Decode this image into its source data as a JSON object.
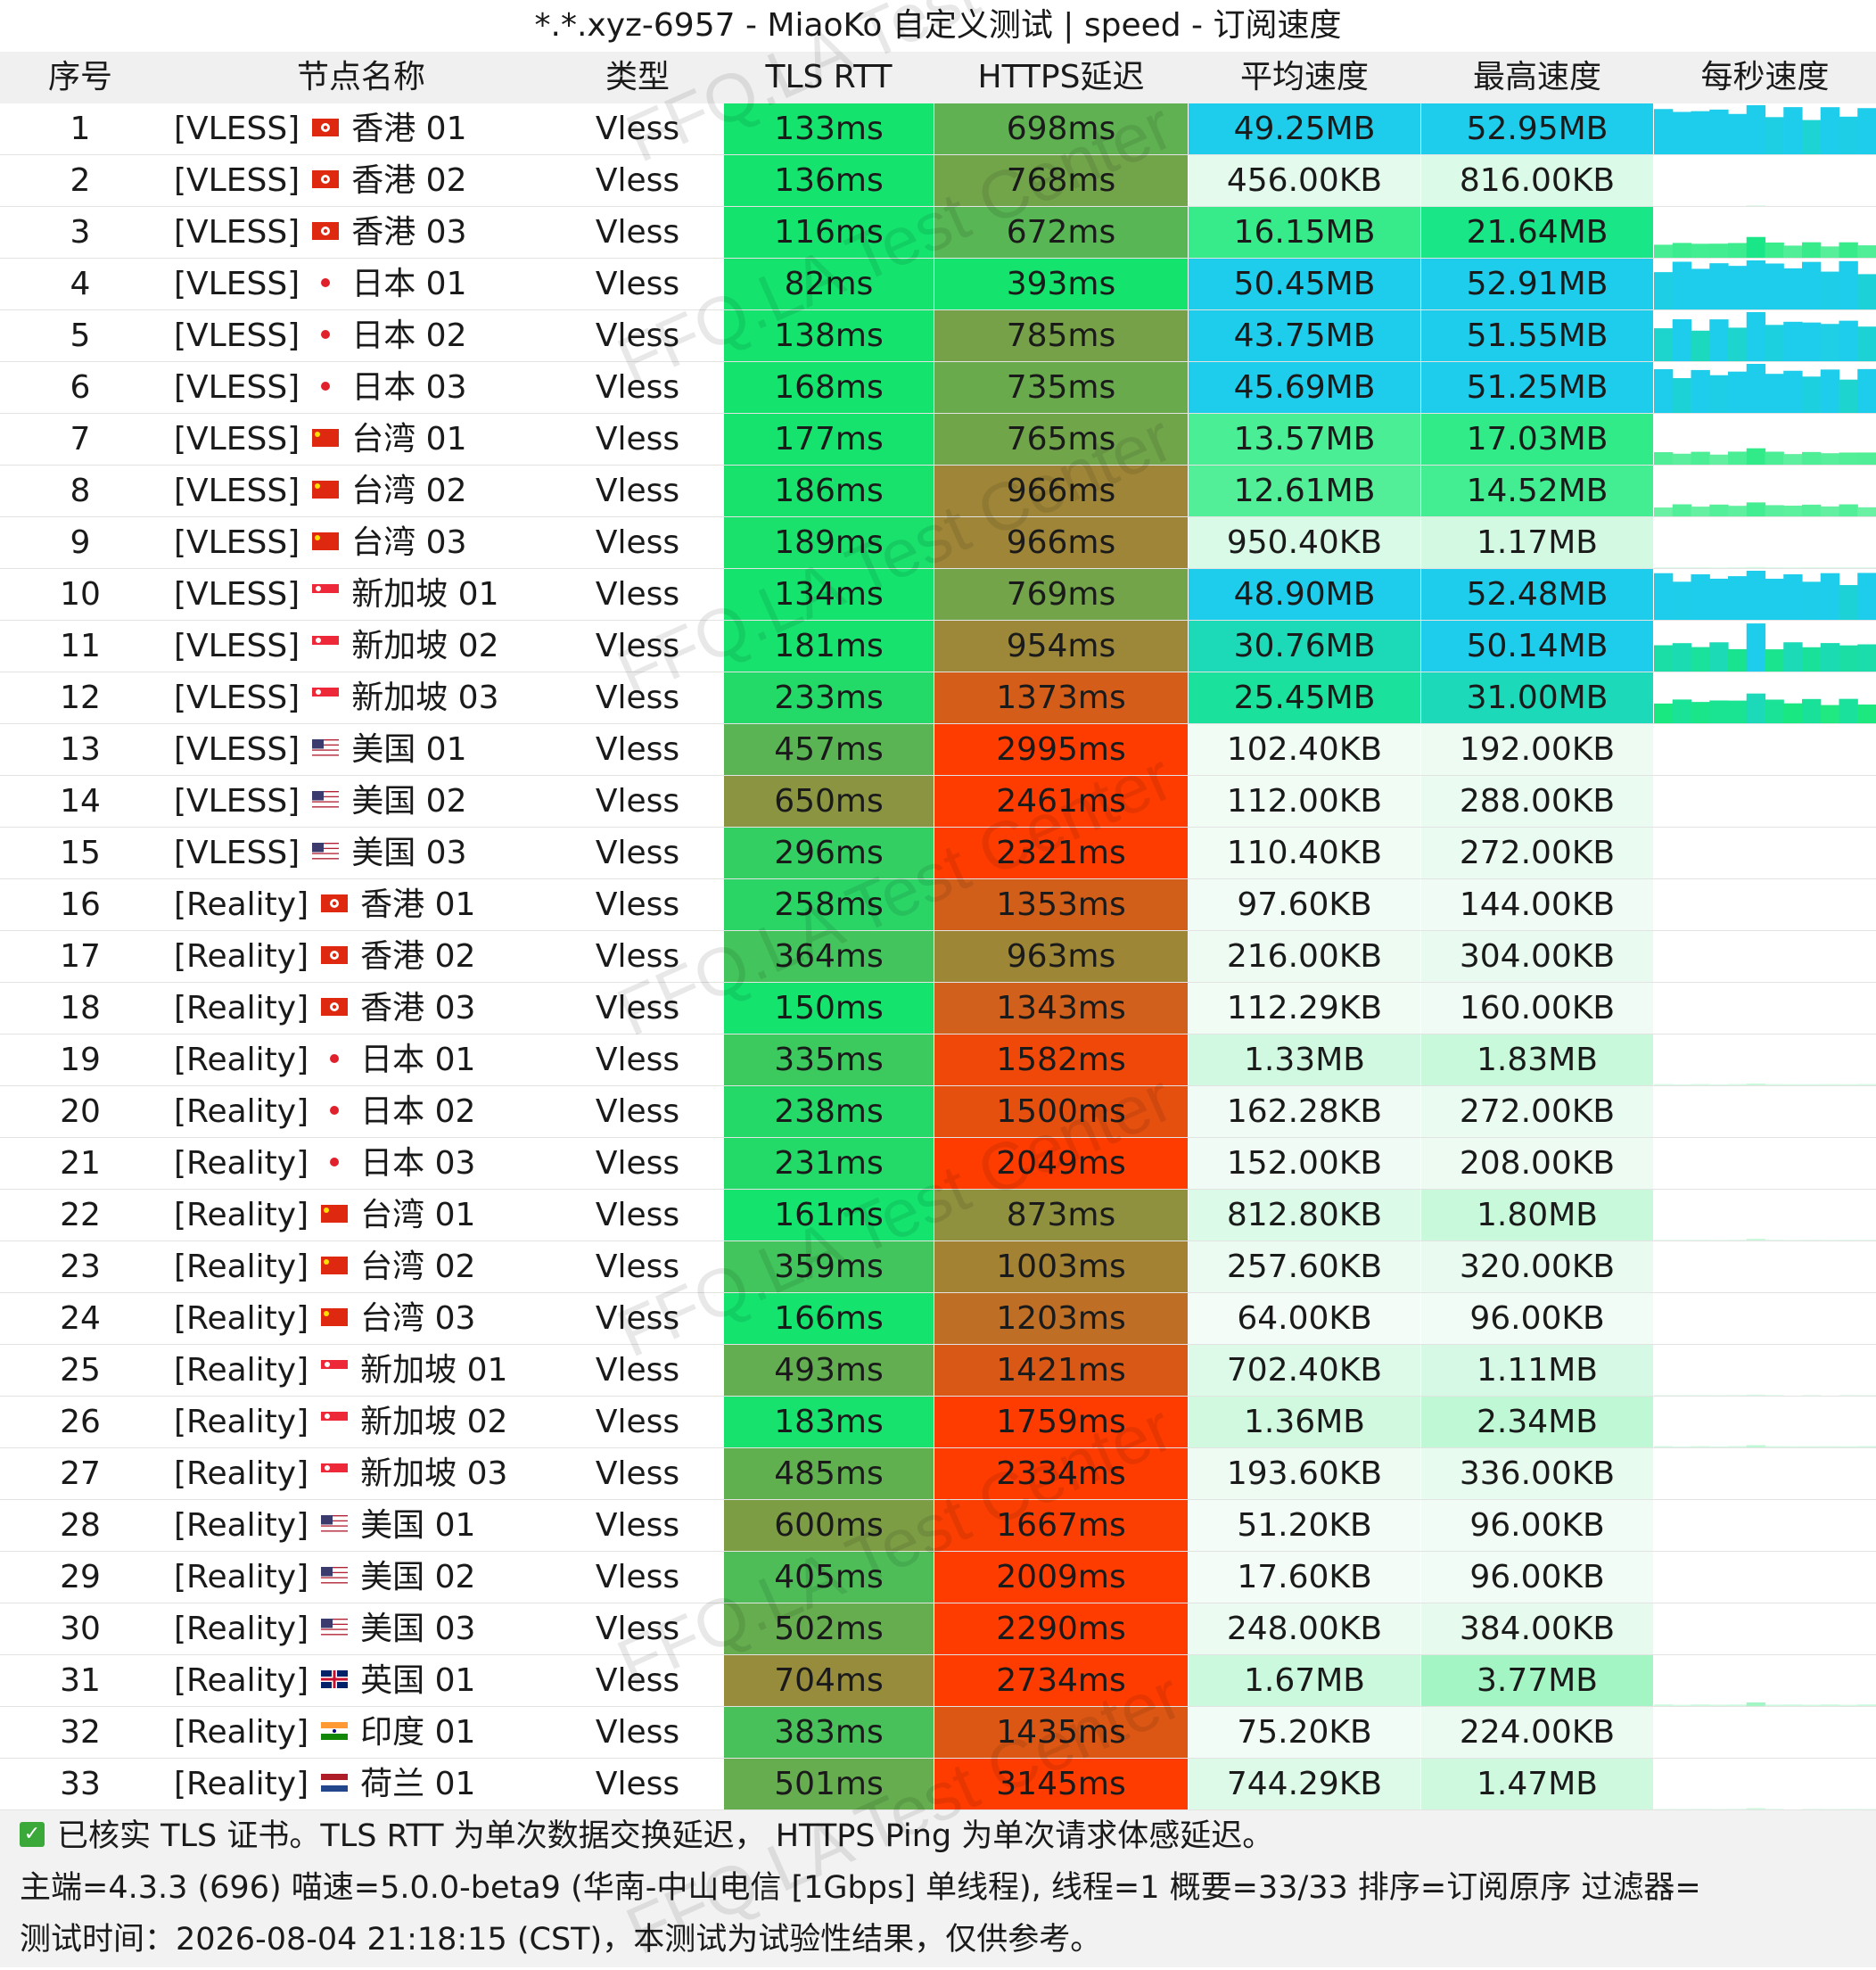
{
  "title": "*.*.xyz-6957 - MiaoKo 自定义测试 | speed - 订阅速度",
  "headers": [
    "序号",
    "节点名称",
    "类型",
    "TLS RTT",
    "HTTPS延迟",
    "平均速度",
    "最高速度",
    "每秒速度"
  ],
  "rows": [
    {
      "idx": "1",
      "tag": "[VLESS]",
      "flag": "hk-flag-icon",
      "name": "香港 01",
      "type": "Vless",
      "rtt": "133ms",
      "https": "698ms",
      "avg": "49.25MB",
      "max": "52.95MB",
      "avg_mb": 49.25,
      "max_mb": 52.95
    },
    {
      "idx": "2",
      "tag": "[VLESS]",
      "flag": "hk-flag-icon",
      "name": "香港 02",
      "type": "Vless",
      "rtt": "136ms",
      "https": "768ms",
      "avg": "456.00KB",
      "max": "816.00KB",
      "avg_mb": 0.445,
      "max_mb": 0.797
    },
    {
      "idx": "3",
      "tag": "[VLESS]",
      "flag": "hk-flag-icon",
      "name": "香港 03",
      "type": "Vless",
      "rtt": "116ms",
      "https": "672ms",
      "avg": "16.15MB",
      "max": "21.64MB",
      "avg_mb": 16.15,
      "max_mb": 21.64
    },
    {
      "idx": "4",
      "tag": "[VLESS]",
      "flag": "jp-flag-icon",
      "name": "日本 01",
      "type": "Vless",
      "rtt": "82ms",
      "https": "393ms",
      "avg": "50.45MB",
      "max": "52.91MB",
      "avg_mb": 50.45,
      "max_mb": 52.91
    },
    {
      "idx": "5",
      "tag": "[VLESS]",
      "flag": "jp-flag-icon",
      "name": "日本 02",
      "type": "Vless",
      "rtt": "138ms",
      "https": "785ms",
      "avg": "43.75MB",
      "max": "51.55MB",
      "avg_mb": 43.75,
      "max_mb": 51.55
    },
    {
      "idx": "6",
      "tag": "[VLESS]",
      "flag": "jp-flag-icon",
      "name": "日本 03",
      "type": "Vless",
      "rtt": "168ms",
      "https": "735ms",
      "avg": "45.69MB",
      "max": "51.25MB",
      "avg_mb": 45.69,
      "max_mb": 51.25
    },
    {
      "idx": "7",
      "tag": "[VLESS]",
      "flag": "cn-flag-icon",
      "name": "台湾 01",
      "type": "Vless",
      "rtt": "177ms",
      "https": "765ms",
      "avg": "13.57MB",
      "max": "17.03MB",
      "avg_mb": 13.57,
      "max_mb": 17.03
    },
    {
      "idx": "8",
      "tag": "[VLESS]",
      "flag": "cn-flag-icon",
      "name": "台湾 02",
      "type": "Vless",
      "rtt": "186ms",
      "https": "966ms",
      "avg": "12.61MB",
      "max": "14.52MB",
      "avg_mb": 12.61,
      "max_mb": 14.52
    },
    {
      "idx": "9",
      "tag": "[VLESS]",
      "flag": "cn-flag-icon",
      "name": "台湾 03",
      "type": "Vless",
      "rtt": "189ms",
      "https": "966ms",
      "avg": "950.40KB",
      "max": "1.17MB",
      "avg_mb": 0.928,
      "max_mb": 1.17
    },
    {
      "idx": "10",
      "tag": "[VLESS]",
      "flag": "sg-flag-icon",
      "name": "新加坡 01",
      "type": "Vless",
      "rtt": "134ms",
      "https": "769ms",
      "avg": "48.90MB",
      "max": "52.48MB",
      "avg_mb": 48.9,
      "max_mb": 52.48
    },
    {
      "idx": "11",
      "tag": "[VLESS]",
      "flag": "sg-flag-icon",
      "name": "新加坡 02",
      "type": "Vless",
      "rtt": "181ms",
      "https": "954ms",
      "avg": "30.76MB",
      "max": "50.14MB",
      "avg_mb": 30.76,
      "max_mb": 50.14
    },
    {
      "idx": "12",
      "tag": "[VLESS]",
      "flag": "sg-flag-icon",
      "name": "新加坡 03",
      "type": "Vless",
      "rtt": "233ms",
      "https": "1373ms",
      "avg": "25.45MB",
      "max": "31.00MB",
      "avg_mb": 25.45,
      "max_mb": 31.0
    },
    {
      "idx": "13",
      "tag": "[VLESS]",
      "flag": "us-flag-icon",
      "name": "美国 01",
      "type": "Vless",
      "rtt": "457ms",
      "https": "2995ms",
      "avg": "102.40KB",
      "max": "192.00KB",
      "avg_mb": 0.1,
      "max_mb": 0.1875
    },
    {
      "idx": "14",
      "tag": "[VLESS]",
      "flag": "us-flag-icon",
      "name": "美国 02",
      "type": "Vless",
      "rtt": "650ms",
      "https": "2461ms",
      "avg": "112.00KB",
      "max": "288.00KB",
      "avg_mb": 0.109,
      "max_mb": 0.281
    },
    {
      "idx": "15",
      "tag": "[VLESS]",
      "flag": "us-flag-icon",
      "name": "美国 03",
      "type": "Vless",
      "rtt": "296ms",
      "https": "2321ms",
      "avg": "110.40KB",
      "max": "272.00KB",
      "avg_mb": 0.108,
      "max_mb": 0.266
    },
    {
      "idx": "16",
      "tag": "[Reality]",
      "flag": "hk-flag-icon",
      "name": "香港 01",
      "type": "Vless",
      "rtt": "258ms",
      "https": "1353ms",
      "avg": "97.60KB",
      "max": "144.00KB",
      "avg_mb": 0.095,
      "max_mb": 0.141
    },
    {
      "idx": "17",
      "tag": "[Reality]",
      "flag": "hk-flag-icon",
      "name": "香港 02",
      "type": "Vless",
      "rtt": "364ms",
      "https": "963ms",
      "avg": "216.00KB",
      "max": "304.00KB",
      "avg_mb": 0.211,
      "max_mb": 0.297
    },
    {
      "idx": "18",
      "tag": "[Reality]",
      "flag": "hk-flag-icon",
      "name": "香港 03",
      "type": "Vless",
      "rtt": "150ms",
      "https": "1343ms",
      "avg": "112.29KB",
      "max": "160.00KB",
      "avg_mb": 0.11,
      "max_mb": 0.156
    },
    {
      "idx": "19",
      "tag": "[Reality]",
      "flag": "jp-flag-icon",
      "name": "日本 01",
      "type": "Vless",
      "rtt": "335ms",
      "https": "1582ms",
      "avg": "1.33MB",
      "max": "1.83MB",
      "avg_mb": 1.33,
      "max_mb": 1.83
    },
    {
      "idx": "20",
      "tag": "[Reality]",
      "flag": "jp-flag-icon",
      "name": "日本 02",
      "type": "Vless",
      "rtt": "238ms",
      "https": "1500ms",
      "avg": "162.28KB",
      "max": "272.00KB",
      "avg_mb": 0.158,
      "max_mb": 0.266
    },
    {
      "idx": "21",
      "tag": "[Reality]",
      "flag": "jp-flag-icon",
      "name": "日本 03",
      "type": "Vless",
      "rtt": "231ms",
      "https": "2049ms",
      "avg": "152.00KB",
      "max": "208.00KB",
      "avg_mb": 0.148,
      "max_mb": 0.203
    },
    {
      "idx": "22",
      "tag": "[Reality]",
      "flag": "cn-flag-icon",
      "name": "台湾 01",
      "type": "Vless",
      "rtt": "161ms",
      "https": "873ms",
      "avg": "812.80KB",
      "max": "1.80MB",
      "avg_mb": 0.794,
      "max_mb": 1.8
    },
    {
      "idx": "23",
      "tag": "[Reality]",
      "flag": "cn-flag-icon",
      "name": "台湾 02",
      "type": "Vless",
      "rtt": "359ms",
      "https": "1003ms",
      "avg": "257.60KB",
      "max": "320.00KB",
      "avg_mb": 0.252,
      "max_mb": 0.3125
    },
    {
      "idx": "24",
      "tag": "[Reality]",
      "flag": "cn-flag-icon",
      "name": "台湾 03",
      "type": "Vless",
      "rtt": "166ms",
      "https": "1203ms",
      "avg": "64.00KB",
      "max": "96.00KB",
      "avg_mb": 0.0625,
      "max_mb": 0.094
    },
    {
      "idx": "25",
      "tag": "[Reality]",
      "flag": "sg-flag-icon",
      "name": "新加坡 01",
      "type": "Vless",
      "rtt": "493ms",
      "https": "1421ms",
      "avg": "702.40KB",
      "max": "1.11MB",
      "avg_mb": 0.686,
      "max_mb": 1.11
    },
    {
      "idx": "26",
      "tag": "[Reality]",
      "flag": "sg-flag-icon",
      "name": "新加坡 02",
      "type": "Vless",
      "rtt": "183ms",
      "https": "1759ms",
      "avg": "1.36MB",
      "max": "2.34MB",
      "avg_mb": 1.36,
      "max_mb": 2.34
    },
    {
      "idx": "27",
      "tag": "[Reality]",
      "flag": "sg-flag-icon",
      "name": "新加坡 03",
      "type": "Vless",
      "rtt": "485ms",
      "https": "2334ms",
      "avg": "193.60KB",
      "max": "336.00KB",
      "avg_mb": 0.189,
      "max_mb": 0.328
    },
    {
      "idx": "28",
      "tag": "[Reality]",
      "flag": "us-flag-icon",
      "name": "美国 01",
      "type": "Vless",
      "rtt": "600ms",
      "https": "1667ms",
      "avg": "51.20KB",
      "max": "96.00KB",
      "avg_mb": 0.05,
      "max_mb": 0.094
    },
    {
      "idx": "29",
      "tag": "[Reality]",
      "flag": "us-flag-icon",
      "name": "美国 02",
      "type": "Vless",
      "rtt": "405ms",
      "https": "2009ms",
      "avg": "17.60KB",
      "max": "96.00KB",
      "avg_mb": 0.017,
      "max_mb": 0.094
    },
    {
      "idx": "30",
      "tag": "[Reality]",
      "flag": "us-flag-icon",
      "name": "美国 03",
      "type": "Vless",
      "rtt": "502ms",
      "https": "2290ms",
      "avg": "248.00KB",
      "max": "384.00KB",
      "avg_mb": 0.242,
      "max_mb": 0.375
    },
    {
      "idx": "31",
      "tag": "[Reality]",
      "flag": "uk-flag-icon",
      "name": "英国 01",
      "type": "Vless",
      "rtt": "704ms",
      "https": "2734ms",
      "avg": "1.67MB",
      "max": "3.77MB",
      "avg_mb": 1.67,
      "max_mb": 3.77
    },
    {
      "idx": "32",
      "tag": "[Reality]",
      "flag": "in-flag-icon",
      "name": "印度 01",
      "type": "Vless",
      "rtt": "383ms",
      "https": "1435ms",
      "avg": "75.20KB",
      "max": "224.00KB",
      "avg_mb": 0.073,
      "max_mb": 0.219
    },
    {
      "idx": "33",
      "tag": "[Reality]",
      "flag": "nl-flag-icon",
      "name": "荷兰 01",
      "type": "Vless",
      "rtt": "501ms",
      "https": "3145ms",
      "avg": "744.29KB",
      "max": "1.47MB",
      "avg_mb": 0.727,
      "max_mb": 1.47
    }
  ],
  "footer": {
    "line1": "已核实 TLS 证书。TLS RTT 为单次数据交换延迟， HTTPS Ping 为单次请求体感延迟。",
    "line2": "主端=4.3.3 (696) 喵速=5.0.0-beta9 (华南-中山电信 [1Gbps] 单线程), 线程=1 概要=33/33 排序=订阅原序 过滤器=",
    "line3": "测试时间：2026-08-04 21:18:15 (CST)，本测试为试验性结果，仅供参考。"
  },
  "watermark": "FFQ.LA Test Center",
  "colors": {
    "header_bg": "#f0f0f0",
    "footer_bg": "#f2f2f2",
    "check": "#3aa93a"
  }
}
